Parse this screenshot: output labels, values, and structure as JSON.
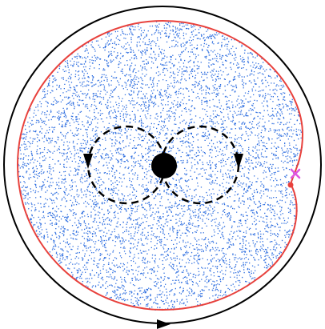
{
  "colors": {
    "background": "#ffffff",
    "outer_circle": "#000000",
    "boundary_curve": "#e8413c",
    "scatter_points": "#2f6fe0",
    "dashed_loops": "#000000",
    "central_body": "#000000",
    "marker_cross": "#e055e0",
    "marker_dot": "#e8413c"
  },
  "elements": {
    "outer_orbit": {
      "style": "solid",
      "arrow_direction": "right"
    },
    "boundary_curve": {
      "style": "solid"
    },
    "scatter_cloud": {
      "point_count": 9000
    },
    "left_loop": {
      "style": "dashed",
      "arrow_direction": "down"
    },
    "right_loop": {
      "style": "dashed",
      "arrow_direction": "down"
    },
    "central_body": {
      "shape": "filled-circle"
    },
    "marker_cross": {
      "shape": "x"
    },
    "marker_dot": {
      "shape": "dot"
    }
  }
}
